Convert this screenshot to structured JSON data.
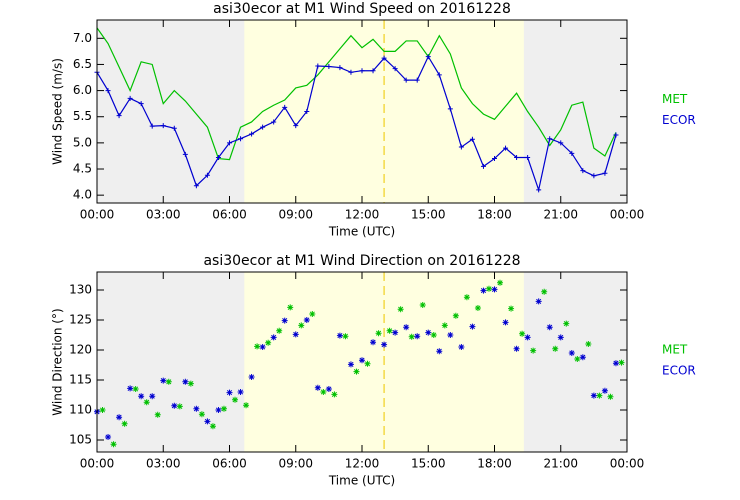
{
  "chart_data": [
    {
      "type": "line",
      "title": "asi30ecor at M1 Wind Speed on 20161228",
      "xlabel": "Time (UTC)",
      "ylabel": "Wind Speed (m/s)",
      "xlim": [
        0,
        24
      ],
      "ylim": [
        3.85,
        7.35
      ],
      "xticks": [
        {
          "value": 0,
          "label": "00:00"
        },
        {
          "value": 3,
          "label": "03:00"
        },
        {
          "value": 6,
          "label": "06:00"
        },
        {
          "value": 9,
          "label": "09:00"
        },
        {
          "value": 12,
          "label": "12:00"
        },
        {
          "value": 15,
          "label": "15:00"
        },
        {
          "value": 18,
          "label": "18:00"
        },
        {
          "value": 21,
          "label": "21:00"
        },
        {
          "value": 24,
          "label": "00:00"
        }
      ],
      "yticks": [
        {
          "value": 4,
          "label": "4.0"
        },
        4.5,
        {
          "value": 5,
          "label": "5.0"
        },
        5.5,
        {
          "value": 6,
          "label": "6.0"
        },
        6.5,
        {
          "value": 7,
          "label": "7.0"
        }
      ],
      "day_span": [
        6.67,
        19.33
      ],
      "vline": 13,
      "x": [
        0,
        0.5,
        1,
        1.5,
        2,
        2.5,
        3,
        3.5,
        4,
        4.5,
        5,
        5.5,
        6,
        6.5,
        7,
        7.5,
        8,
        8.5,
        9,
        9.5,
        10,
        10.5,
        11,
        11.5,
        12,
        12.5,
        13,
        13.5,
        14,
        14.5,
        15,
        15.5,
        16,
        16.5,
        17,
        17.5,
        18,
        18.5,
        19,
        19.5,
        20,
        20.5,
        21,
        21.5,
        22,
        22.5,
        23,
        23.5
      ],
      "series": [
        {
          "name": "MET",
          "color": "#00c000",
          "marker": null,
          "values": [
            7.2,
            6.9,
            6.45,
            6.0,
            6.55,
            6.5,
            5.75,
            6.0,
            5.8,
            5.55,
            5.3,
            4.7,
            4.68,
            5.3,
            5.4,
            5.6,
            5.72,
            5.82,
            6.05,
            6.1,
            6.3,
            6.55,
            6.8,
            7.05,
            6.82,
            6.98,
            6.75,
            6.75,
            6.95,
            6.95,
            6.65,
            7.05,
            6.7,
            6.05,
            5.75,
            5.55,
            5.45,
            5.7,
            5.95,
            5.6,
            5.3,
            4.95,
            5.25,
            5.72,
            5.78,
            4.9,
            4.75,
            5.2
          ]
        },
        {
          "name": "ECOR",
          "color": "#0000d0",
          "marker": "+",
          "values": [
            6.35,
            6.0,
            5.52,
            5.85,
            5.75,
            5.32,
            5.33,
            5.28,
            4.78,
            4.18,
            4.38,
            4.72,
            5.0,
            5.08,
            5.17,
            5.3,
            5.4,
            5.68,
            5.33,
            5.6,
            6.47,
            6.46,
            6.44,
            6.35,
            6.38,
            6.38,
            6.62,
            6.42,
            6.2,
            6.2,
            6.65,
            6.3,
            5.65,
            4.92,
            5.07,
            4.55,
            4.7,
            4.9,
            4.72,
            4.72,
            4.1,
            5.08,
            5.0,
            4.8,
            4.47,
            4.37,
            4.42,
            5.15
          ]
        }
      ]
    },
    {
      "type": "scatter",
      "title": "asi30ecor at M1 Wind Direction on 20161228",
      "xlabel": "Time (UTC)",
      "ylabel": "Wind Direction (°)",
      "xlim": [
        0,
        24
      ],
      "ylim": [
        103,
        133
      ],
      "xticks": [
        {
          "value": 0,
          "label": "00:00"
        },
        {
          "value": 3,
          "label": "03:00"
        },
        {
          "value": 6,
          "label": "06:00"
        },
        {
          "value": 9,
          "label": "09:00"
        },
        {
          "value": 12,
          "label": "12:00"
        },
        {
          "value": 15,
          "label": "15:00"
        },
        {
          "value": 18,
          "label": "18:00"
        },
        {
          "value": 21,
          "label": "21:00"
        },
        {
          "value": 24,
          "label": "00:00"
        }
      ],
      "yticks": [
        105,
        110,
        115,
        120,
        125,
        130
      ],
      "day_span": [
        6.67,
        19.33
      ],
      "vline": 13,
      "series": [
        {
          "name": "MET",
          "color": "#00c000",
          "marker": "*",
          "x": [
            0.25,
            0.75,
            1.25,
            1.75,
            2.25,
            2.75,
            3.25,
            3.75,
            4.25,
            4.75,
            5.25,
            5.75,
            6.25,
            6.75,
            7.25,
            7.75,
            8.25,
            8.75,
            9.25,
            9.75,
            10.25,
            10.75,
            11.25,
            11.75,
            12.25,
            12.75,
            13.25,
            13.75,
            14.25,
            14.75,
            15.25,
            15.75,
            16.25,
            16.75,
            17.25,
            17.75,
            18.25,
            18.75,
            19.25,
            19.75,
            20.25,
            20.75,
            21.25,
            21.75,
            22.25,
            22.75,
            23.25,
            23.75
          ],
          "values": [
            110,
            104.3,
            107.7,
            113.5,
            111.3,
            109.2,
            114.7,
            110.6,
            114.4,
            109.3,
            107.3,
            110.2,
            111.7,
            110.8,
            120.6,
            121.2,
            123.2,
            127.1,
            124.1,
            126.0,
            113.0,
            112.6,
            122.3,
            116.4,
            117.7,
            122.8,
            123.2,
            126.8,
            122.2,
            127.5,
            122.5,
            124.1,
            125.7,
            128.8,
            127.0,
            130.2,
            131.2,
            126.9,
            122.7,
            119.9,
            129.7,
            120.2,
            124.4,
            118.5,
            121.0,
            112.4,
            112.2,
            117.9
          ]
        },
        {
          "name": "ECOR",
          "color": "#0000d0",
          "marker": "*",
          "x": [
            0,
            0.5,
            1,
            1.5,
            2,
            2.5,
            3,
            3.5,
            4,
            4.5,
            5,
            5.5,
            6,
            6.5,
            7,
            7.5,
            8,
            8.5,
            9,
            9.5,
            10,
            10.5,
            11,
            11.5,
            12,
            12.5,
            13,
            13.5,
            14,
            14.5,
            15,
            15.5,
            16,
            16.5,
            17,
            17.5,
            18,
            18.5,
            19,
            19.5,
            20,
            20.5,
            21,
            21.5,
            22,
            22.5,
            23,
            23.5
          ],
          "values": [
            109.7,
            105.5,
            108.8,
            113.6,
            112.3,
            112.3,
            114.9,
            110.7,
            114.7,
            110.2,
            108.1,
            110.0,
            112.9,
            113.0,
            115.5,
            120.5,
            122.1,
            124.9,
            122.6,
            125.0,
            113.7,
            113.5,
            122.4,
            117.6,
            118.3,
            121.3,
            120.9,
            122.9,
            123.8,
            122.3,
            122.9,
            119.8,
            122.5,
            120.5,
            123.9,
            129.9,
            130.1,
            124.6,
            120.2,
            122.1,
            128.1,
            123.8,
            122.1,
            119.5,
            118.8,
            112.4,
            113.2,
            117.8
          ]
        }
      ]
    }
  ]
}
